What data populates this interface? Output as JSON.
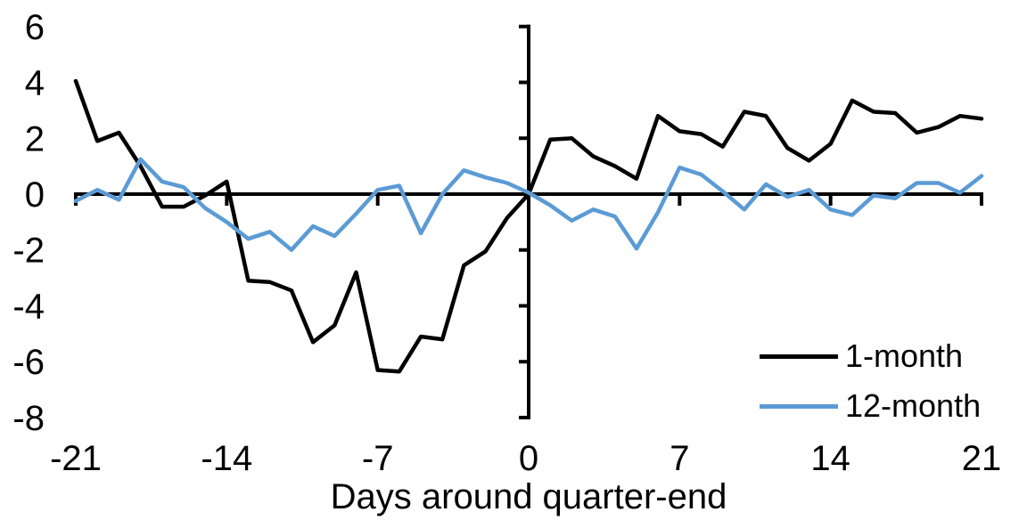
{
  "chart_data": {
    "type": "line",
    "title": "",
    "xlabel": "Days around quarter-end",
    "ylabel": "",
    "xlim": [
      -21,
      21
    ],
    "ylim": [
      -8,
      6
    ],
    "x_ticks": [
      -21,
      -14,
      -7,
      0,
      7,
      14,
      21
    ],
    "y_ticks": [
      6,
      4,
      2,
      0,
      -2,
      -4,
      -6,
      -8
    ],
    "grid": false,
    "background": "#ffffff",
    "axis_color": "#000000",
    "legend_position": "inside-lower-right",
    "x": [
      -21,
      -20,
      -19,
      -18,
      -17,
      -16,
      -15,
      -14,
      -13,
      -12,
      -11,
      -10,
      -9,
      -8,
      -7,
      -6,
      -5,
      -4,
      -3,
      -2,
      -1,
      0,
      1,
      2,
      3,
      4,
      5,
      6,
      7,
      8,
      9,
      10,
      11,
      12,
      13,
      14,
      15,
      16,
      17,
      18,
      19,
      20,
      21
    ],
    "series": [
      {
        "name": "1-month",
        "color": "#000000",
        "values": [
          4.05,
          1.9,
          2.2,
          1.0,
          -0.45,
          -0.45,
          -0.05,
          0.45,
          -3.1,
          -3.15,
          -3.45,
          -5.3,
          -4.7,
          -2.8,
          -6.3,
          -6.35,
          -5.1,
          -5.2,
          -2.55,
          -2.05,
          -0.85,
          0,
          1.95,
          2.0,
          1.35,
          1.0,
          0.55,
          2.8,
          2.25,
          2.15,
          1.7,
          2.95,
          2.8,
          1.65,
          1.2,
          1.8,
          3.35,
          2.95,
          2.9,
          2.2,
          2.4,
          2.8,
          2.7
        ]
      },
      {
        "name": "12-month",
        "color": "#5b9bd5",
        "values": [
          -0.25,
          0.15,
          -0.2,
          1.25,
          0.45,
          0.25,
          -0.5,
          -1.0,
          -1.6,
          -1.35,
          -2.0,
          -1.15,
          -1.5,
          -0.7,
          0.15,
          0.3,
          -1.4,
          0.0,
          0.85,
          0.6,
          0.4,
          0.05,
          -0.4,
          -0.95,
          -0.55,
          -0.8,
          -1.95,
          -0.65,
          0.95,
          0.7,
          0.1,
          -0.55,
          0.35,
          -0.1,
          0.15,
          -0.55,
          -0.75,
          -0.05,
          -0.15,
          0.4,
          0.4,
          0.05,
          0.65
        ]
      }
    ]
  }
}
